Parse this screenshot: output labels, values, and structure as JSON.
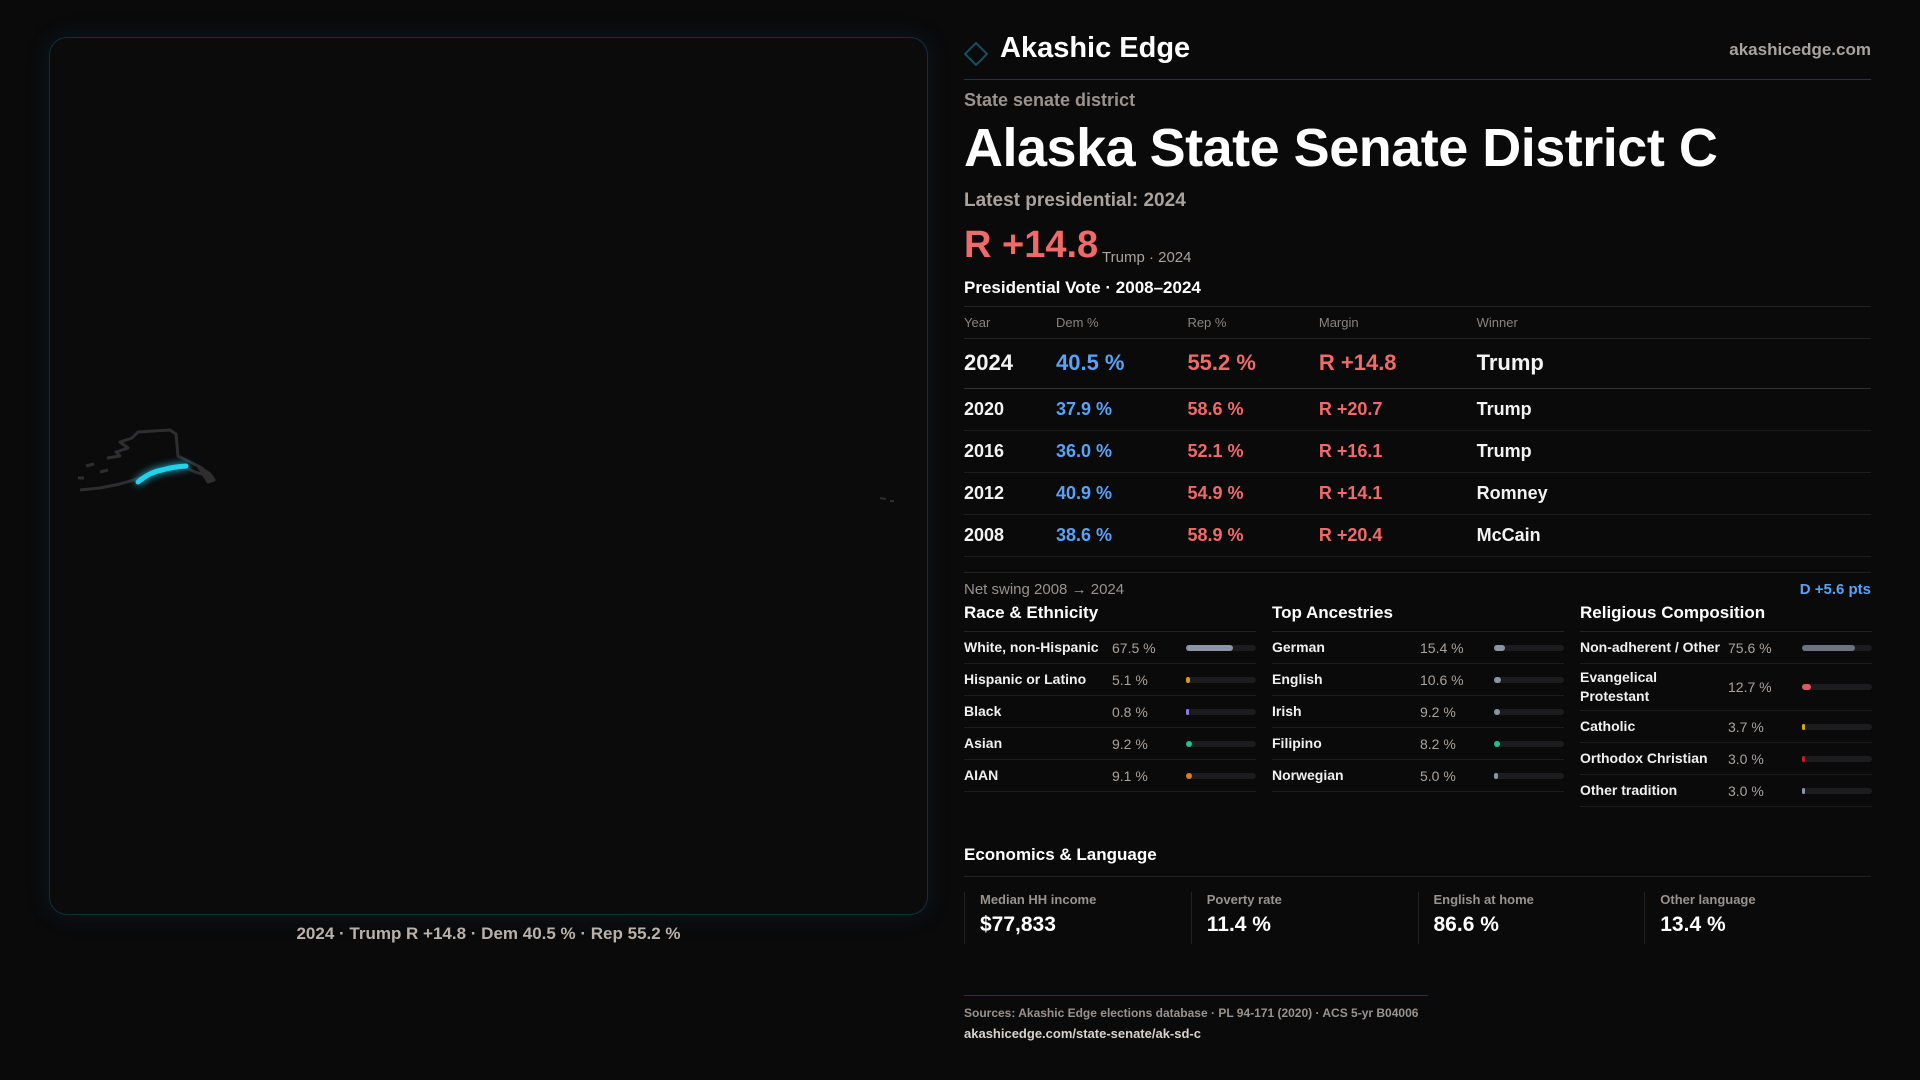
{
  "header": {
    "brand": "Akashic Edge",
    "site": "akashicedge.com"
  },
  "kicker": "State senate district",
  "title": "Alaska State Senate District C",
  "latest": "Latest presidential: 2024",
  "headline_margin": "R +14.8",
  "headline_sub": "Trump · 2024",
  "colors": {
    "dem": "#5aa2f5",
    "rep": "#f06a6a",
    "accent": "#22d3ee"
  },
  "presidential": {
    "title": "Presidential Vote · 2008–2024",
    "columns": [
      "Year",
      "Dem %",
      "Rep %",
      "Margin",
      "Winner"
    ],
    "rows": [
      {
        "year": "2024",
        "dem": "40.5 %",
        "rep": "55.2 %",
        "margin": "R +14.8",
        "winner": "Trump"
      },
      {
        "year": "2020",
        "dem": "37.9 %",
        "rep": "58.6 %",
        "margin": "R +20.7",
        "winner": "Trump"
      },
      {
        "year": "2016",
        "dem": "36.0 %",
        "rep": "52.1 %",
        "margin": "R +16.1",
        "winner": "Trump"
      },
      {
        "year": "2012",
        "dem": "40.9 %",
        "rep": "54.9 %",
        "margin": "R +14.1",
        "winner": "Romney"
      },
      {
        "year": "2008",
        "dem": "38.6 %",
        "rep": "58.9 %",
        "margin": "R +20.4",
        "winner": "McCain"
      }
    ]
  },
  "swing": {
    "label": "Net swing 2008 → 2024",
    "value": "D +5.6 pts"
  },
  "race": {
    "title": "Race & Ethnicity",
    "items": [
      {
        "label": "White, non-Hispanic",
        "value": "67.5 %",
        "pct": 67.5,
        "color": "#8a96a8"
      },
      {
        "label": "Hispanic or Latino",
        "value": "5.1 %",
        "pct": 5.1,
        "color": "#d99a1c"
      },
      {
        "label": "Black",
        "value": "0.8 %",
        "pct": 0.8,
        "color": "#8b7cf0"
      },
      {
        "label": "Asian",
        "value": "9.2 %",
        "pct": 9.2,
        "color": "#22c08a"
      },
      {
        "label": "AIAN",
        "value": "9.1 %",
        "pct": 9.1,
        "color": "#d9801c"
      }
    ]
  },
  "ancestry": {
    "title": "Top Ancestries",
    "items": [
      {
        "label": "German",
        "value": "15.4 %",
        "pct": 15.4,
        "color": "#8a96a8"
      },
      {
        "label": "English",
        "value": "10.6 %",
        "pct": 10.6,
        "color": "#8a96a8"
      },
      {
        "label": "Irish",
        "value": "9.2 %",
        "pct": 9.2,
        "color": "#8a96a8"
      },
      {
        "label": "Filipino",
        "value": "8.2 %",
        "pct": 8.2,
        "color": "#22c08a"
      },
      {
        "label": "Norwegian",
        "value": "5.0 %",
        "pct": 5.0,
        "color": "#8a96a8"
      }
    ]
  },
  "religion": {
    "title": "Religious Composition",
    "items": [
      {
        "label": "Non-adherent / Other",
        "value": "75.6 %",
        "pct": 75.6,
        "color": "#6b7280"
      },
      {
        "label": "Evangelical Protestant",
        "value": "12.7 %",
        "pct": 12.7,
        "color": "#e05a5a"
      },
      {
        "label": "Catholic",
        "value": "3.7 %",
        "pct": 3.7,
        "color": "#d9a51c"
      },
      {
        "label": "Orthodox Christian",
        "value": "3.0 %",
        "pct": 3.0,
        "color": "#c02020"
      },
      {
        "label": "Other tradition",
        "value": "3.0 %",
        "pct": 3.0,
        "color": "#8a96a8"
      }
    ]
  },
  "economics": {
    "title": "Economics & Language",
    "cards": [
      {
        "label": "Median HH income",
        "value": "$77,833"
      },
      {
        "label": "Poverty rate",
        "value": "11.4 %"
      },
      {
        "label": "English at home",
        "value": "86.6 %"
      },
      {
        "label": "Other language",
        "value": "13.4 %"
      }
    ]
  },
  "footer": {
    "sources": "Sources: Akashic Edge elections database · PL 94-171 (2020) · ACS 5-yr B04006",
    "url": "akashicedge.com/state-senate/ak-sd-c"
  },
  "map_caption": "2024 · Trump R +14.8 · Dem 40.5 % · Rep 55.2 %"
}
